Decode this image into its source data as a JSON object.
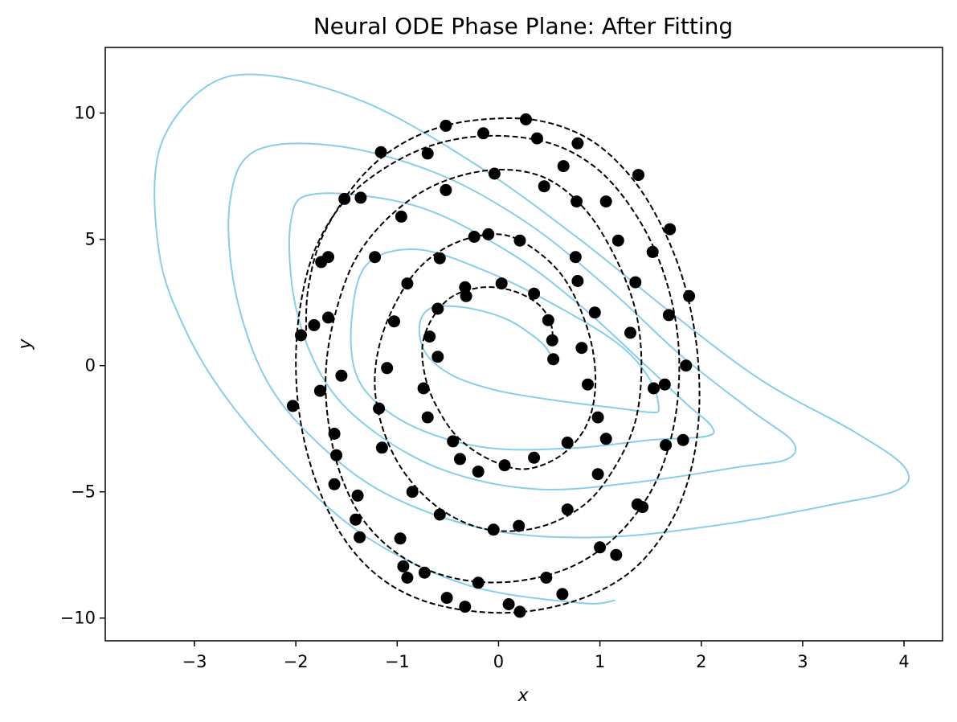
{
  "chart_data": {
    "type": "scatter",
    "title": "Neural ODE Phase Plane: After Fitting",
    "xlabel": "x",
    "ylabel": "y",
    "xlim": [
      -3.88,
      4.38
    ],
    "ylim": [
      -10.9,
      12.6
    ],
    "x_ticks": [
      -3,
      -2,
      -1,
      0,
      1,
      2,
      3,
      4
    ],
    "x_tick_labels": [
      "−3",
      "−2",
      "−1",
      "0",
      "1",
      "2",
      "3",
      "4"
    ],
    "y_ticks": [
      -10,
      -5,
      0,
      5,
      10
    ],
    "y_tick_labels": [
      "−10",
      "−5",
      "0",
      "5",
      "10"
    ],
    "grid": false,
    "colors": {
      "data_points": "#000000",
      "true_trajectory": "#000000",
      "fitted_trajectory": "#87ceeb"
    },
    "fitted_trajectory": [
      [
        0.53,
        0.3
      ],
      [
        0.45,
        0.8
      ],
      [
        0.3,
        1.3
      ],
      [
        0.1,
        1.8
      ],
      [
        -0.15,
        2.15
      ],
      [
        -0.45,
        2.35
      ],
      [
        -0.68,
        2.25
      ],
      [
        -0.78,
        1.6
      ],
      [
        -0.72,
        0.5
      ],
      [
        -0.45,
        -0.4
      ],
      [
        0.0,
        -1.0
      ],
      [
        0.6,
        -1.4
      ],
      [
        1.2,
        -1.7
      ],
      [
        1.5,
        -1.85
      ],
      [
        1.58,
        -1.7
      ],
      [
        1.5,
        -0.6
      ],
      [
        1.2,
        0.8
      ],
      [
        0.6,
        2.3
      ],
      [
        -0.1,
        3.7
      ],
      [
        -0.8,
        4.6
      ],
      [
        -1.3,
        4.0
      ],
      [
        -1.45,
        1.8
      ],
      [
        -1.4,
        -0.4
      ],
      [
        -1.1,
        -1.8
      ],
      [
        -0.6,
        -2.8
      ],
      [
        0.0,
        -3.3
      ],
      [
        0.8,
        -3.25
      ],
      [
        1.5,
        -2.95
      ],
      [
        2.05,
        -2.8
      ],
      [
        2.1,
        -2.4
      ],
      [
        1.85,
        -1.5
      ],
      [
        1.4,
        0.2
      ],
      [
        0.8,
        2.4
      ],
      [
        0.1,
        4.5
      ],
      [
        -0.8,
        6.3
      ],
      [
        -1.8,
        6.8
      ],
      [
        -2.05,
        5.7
      ],
      [
        -2.0,
        2.3
      ],
      [
        -1.7,
        -0.7
      ],
      [
        -1.2,
        -2.7
      ],
      [
        -0.5,
        -4.2
      ],
      [
        0.4,
        -4.9
      ],
      [
        1.4,
        -4.6
      ],
      [
        2.4,
        -4.0
      ],
      [
        2.85,
        -3.7
      ],
      [
        2.9,
        -3.0
      ],
      [
        2.5,
        -1.8
      ],
      [
        1.8,
        0.4
      ],
      [
        1.1,
        3.0
      ],
      [
        0.3,
        5.6
      ],
      [
        -0.6,
        7.6
      ],
      [
        -1.6,
        8.7
      ],
      [
        -2.4,
        8.5
      ],
      [
        -2.65,
        6.5
      ],
      [
        -2.6,
        3.0
      ],
      [
        -2.3,
        -0.5
      ],
      [
        -1.8,
        -3.0
      ],
      [
        -1.1,
        -5.1
      ],
      [
        -0.1,
        -6.5
      ],
      [
        1.0,
        -6.8
      ],
      [
        2.2,
        -6.3
      ],
      [
        3.3,
        -5.5
      ],
      [
        3.95,
        -4.9
      ],
      [
        4.0,
        -4.0
      ],
      [
        3.5,
        -2.6
      ],
      [
        2.6,
        -0.6
      ],
      [
        1.7,
        2.1
      ],
      [
        0.8,
        5.0
      ],
      [
        -0.2,
        7.9
      ],
      [
        -1.3,
        10.4
      ],
      [
        -2.3,
        11.5
      ],
      [
        -2.9,
        11.0
      ],
      [
        -3.35,
        8.5
      ],
      [
        -3.35,
        4.5
      ],
      [
        -3.1,
        1.5
      ],
      [
        -2.7,
        -1.2
      ],
      [
        -2.1,
        -4.0
      ],
      [
        -1.3,
        -6.8
      ],
      [
        -0.3,
        -8.7
      ],
      [
        0.8,
        -9.4
      ],
      [
        1.15,
        -9.3
      ]
    ],
    "true_trajectory": [
      [
        0.53,
        0.8
      ],
      [
        0.52,
        1.6
      ],
      [
        0.4,
        2.4
      ],
      [
        0.15,
        2.95
      ],
      [
        -0.15,
        3.1
      ],
      [
        -0.45,
        2.75
      ],
      [
        -0.65,
        1.9
      ],
      [
        -0.75,
        0.8
      ],
      [
        -0.72,
        -0.5
      ],
      [
        -0.6,
        -1.7
      ],
      [
        -0.4,
        -2.85
      ],
      [
        -0.1,
        -3.7
      ],
      [
        0.25,
        -4.1
      ],
      [
        0.6,
        -3.6
      ],
      [
        0.85,
        -2.5
      ],
      [
        0.95,
        -1.1
      ],
      [
        0.93,
        0.6
      ],
      [
        0.8,
        2.3
      ],
      [
        0.6,
        3.7
      ],
      [
        0.3,
        4.75
      ],
      [
        0.0,
        5.2
      ],
      [
        -0.4,
        4.9
      ],
      [
        -0.75,
        4.0
      ],
      [
        -1.0,
        2.6
      ],
      [
        -1.17,
        0.9
      ],
      [
        -1.22,
        -0.9
      ],
      [
        -1.12,
        -2.75
      ],
      [
        -0.9,
        -4.4
      ],
      [
        -0.55,
        -5.75
      ],
      [
        -0.1,
        -6.5
      ],
      [
        0.4,
        -6.4
      ],
      [
        0.85,
        -5.5
      ],
      [
        1.15,
        -4.0
      ],
      [
        1.35,
        -2.2
      ],
      [
        1.41,
        0.0
      ],
      [
        1.35,
        2.2
      ],
      [
        1.15,
        4.3
      ],
      [
        0.85,
        6.2
      ],
      [
        0.45,
        7.45
      ],
      [
        -0.05,
        7.75
      ],
      [
        -0.6,
        7.2
      ],
      [
        -1.05,
        6.0
      ],
      [
        -1.4,
        4.3
      ],
      [
        -1.6,
        2.2
      ],
      [
        -1.7,
        0.0
      ],
      [
        -1.68,
        -2.2
      ],
      [
        -1.55,
        -4.4
      ],
      [
        -1.3,
        -6.3
      ],
      [
        -0.9,
        -7.7
      ],
      [
        -0.4,
        -8.45
      ],
      [
        0.15,
        -8.55
      ],
      [
        0.7,
        -8.0
      ],
      [
        1.15,
        -6.8
      ],
      [
        1.5,
        -5.0
      ],
      [
        1.7,
        -2.9
      ],
      [
        1.78,
        -0.6
      ],
      [
        1.75,
        1.7
      ],
      [
        1.6,
        4.0
      ],
      [
        1.35,
        6.0
      ],
      [
        1.0,
        7.7
      ],
      [
        0.55,
        8.75
      ],
      [
        0.0,
        9.1
      ],
      [
        -0.55,
        8.85
      ],
      [
        -1.05,
        8.0
      ],
      [
        -1.5,
        6.6
      ],
      [
        -1.8,
        4.7
      ],
      [
        -1.95,
        2.5
      ],
      [
        -2.0,
        0.1
      ],
      [
        -1.95,
        -2.3
      ],
      [
        -1.8,
        -4.6
      ],
      [
        -1.55,
        -6.7
      ],
      [
        -1.2,
        -8.3
      ],
      [
        -0.75,
        -9.3
      ],
      [
        -0.2,
        -9.75
      ],
      [
        0.35,
        -9.7
      ],
      [
        0.9,
        -9.1
      ],
      [
        1.35,
        -8.0
      ],
      [
        1.7,
        -6.2
      ],
      [
        1.9,
        -4.1
      ],
      [
        1.98,
        -1.7
      ],
      [
        1.95,
        0.9
      ],
      [
        1.82,
        3.4
      ],
      [
        1.6,
        5.6
      ],
      [
        1.3,
        7.5
      ],
      [
        0.9,
        8.95
      ],
      [
        0.4,
        9.7
      ],
      [
        -0.15,
        9.75
      ],
      [
        -0.65,
        9.35
      ],
      [
        -1.1,
        8.4
      ],
      [
        -1.45,
        7.0
      ],
      [
        -1.75,
        5.0
      ],
      [
        -1.88,
        3.0
      ],
      [
        -1.9,
        1.2
      ]
    ],
    "points": [
      [
        0.54,
        0.25
      ],
      [
        0.53,
        1.0
      ],
      [
        0.49,
        1.8
      ],
      [
        0.35,
        2.85
      ],
      [
        0.03,
        3.25
      ],
      [
        -0.33,
        3.1
      ],
      [
        -0.32,
        2.75
      ],
      [
        -0.6,
        2.25
      ],
      [
        -0.68,
        1.15
      ],
      [
        -0.6,
        0.35
      ],
      [
        -0.74,
        -0.9
      ],
      [
        -0.7,
        -2.05
      ],
      [
        -0.45,
        -3.0
      ],
      [
        -0.38,
        -3.7
      ],
      [
        -0.2,
        -4.2
      ],
      [
        0.06,
        -3.95
      ],
      [
        0.35,
        -3.65
      ],
      [
        0.68,
        -3.05
      ],
      [
        0.98,
        -2.05
      ],
      [
        0.88,
        -0.75
      ],
      [
        0.82,
        0.7
      ],
      [
        0.95,
        2.1
      ],
      [
        0.78,
        3.35
      ],
      [
        0.76,
        4.3
      ],
      [
        0.21,
        4.95
      ],
      [
        -0.1,
        5.2
      ],
      [
        -0.24,
        5.1
      ],
      [
        -0.58,
        4.25
      ],
      [
        -0.9,
        3.25
      ],
      [
        -1.03,
        1.75
      ],
      [
        -1.1,
        -0.1
      ],
      [
        -1.18,
        -1.7
      ],
      [
        -1.15,
        -3.25
      ],
      [
        -0.85,
        -5.0
      ],
      [
        -0.58,
        -5.9
      ],
      [
        -0.05,
        -6.5
      ],
      [
        0.2,
        -6.35
      ],
      [
        0.68,
        -5.7
      ],
      [
        0.98,
        -4.3
      ],
      [
        1.06,
        -2.9
      ],
      [
        1.3,
        1.3
      ],
      [
        1.35,
        3.3
      ],
      [
        1.18,
        4.95
      ],
      [
        1.06,
        6.5
      ],
      [
        0.77,
        6.5
      ],
      [
        0.45,
        7.1
      ],
      [
        -0.04,
        7.6
      ],
      [
        -0.52,
        6.95
      ],
      [
        -0.96,
        5.9
      ],
      [
        -1.22,
        4.3
      ],
      [
        -1.36,
        6.65
      ],
      [
        -1.52,
        6.6
      ],
      [
        -1.75,
        4.1
      ],
      [
        -1.68,
        4.3
      ],
      [
        -1.68,
        1.9
      ],
      [
        -1.82,
        1.6
      ],
      [
        -1.55,
        -0.4
      ],
      [
        -1.76,
        -1.0
      ],
      [
        -1.62,
        -2.7
      ],
      [
        -1.6,
        -3.55
      ],
      [
        -1.62,
        -4.7
      ],
      [
        -1.39,
        -5.15
      ],
      [
        -1.41,
        -6.1
      ],
      [
        -1.37,
        -6.8
      ],
      [
        -0.97,
        -6.85
      ],
      [
        -0.94,
        -7.95
      ],
      [
        -0.9,
        -8.4
      ],
      [
        -0.73,
        -8.2
      ],
      [
        -0.51,
        -9.2
      ],
      [
        -0.33,
        -9.55
      ],
      [
        -0.2,
        -8.6
      ],
      [
        0.1,
        -9.45
      ],
      [
        0.21,
        -9.75
      ],
      [
        0.47,
        -8.4
      ],
      [
        0.63,
        -9.05
      ],
      [
        1.0,
        -7.2
      ],
      [
        1.16,
        -7.5
      ],
      [
        1.37,
        -5.5
      ],
      [
        1.42,
        -5.6
      ],
      [
        1.65,
        -3.15
      ],
      [
        1.82,
        -2.95
      ],
      [
        1.53,
        -0.9
      ],
      [
        1.64,
        -0.75
      ],
      [
        1.85,
        0.0
      ],
      [
        1.88,
        2.75
      ],
      [
        1.68,
        2.0
      ],
      [
        1.52,
        4.5
      ],
      [
        1.69,
        5.4
      ],
      [
        1.38,
        7.55
      ],
      [
        0.64,
        7.9
      ],
      [
        0.78,
        8.8
      ],
      [
        0.38,
        9.0
      ],
      [
        0.27,
        9.75
      ],
      [
        -0.15,
        9.2
      ],
      [
        -0.52,
        9.5
      ],
      [
        -0.7,
        8.4
      ],
      [
        -1.16,
        8.45
      ],
      [
        -1.95,
        1.2
      ],
      [
        -2.03,
        -1.6
      ]
    ]
  }
}
